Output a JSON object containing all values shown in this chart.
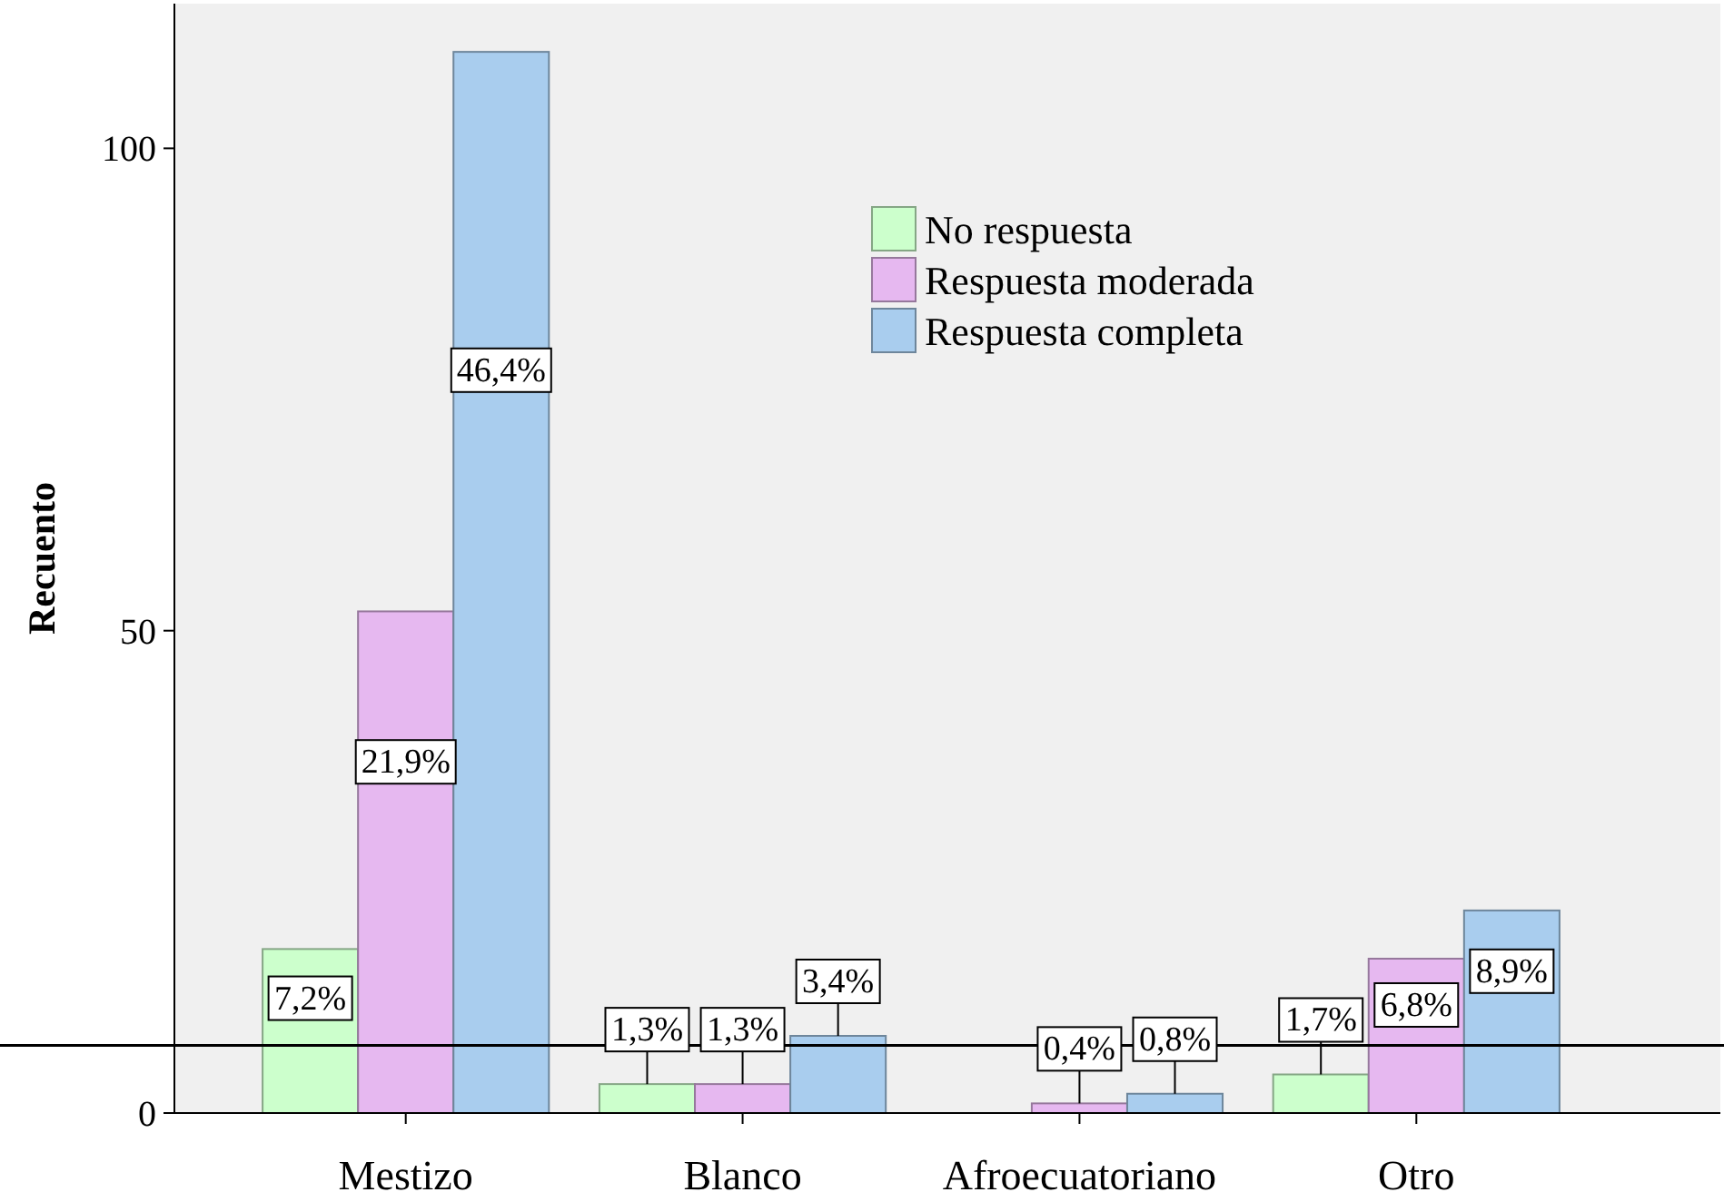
{
  "chart_data": {
    "type": "bar",
    "ylabel": "Recuento",
    "categories": [
      "Mestizo",
      "Blanco",
      "Afroecuatoriano",
      "Otro"
    ],
    "series": [
      {
        "name": "No respuesta",
        "color": "#ccffcc",
        "values": [
          17,
          3,
          0,
          4
        ]
      },
      {
        "name": "Respuesta moderada",
        "color": "#e6b8f0",
        "values": [
          52,
          3,
          1,
          16
        ]
      },
      {
        "name": "Respuesta completa",
        "color": "#a9cdee",
        "values": [
          110,
          8,
          2,
          21
        ]
      }
    ],
    "annotations": [
      "7,2%",
      "21,9%",
      "46,4%",
      "1,3%",
      "1,3%",
      "3,4%",
      "0,4%",
      "0,8%",
      "1,7%",
      "6,8%",
      "8,9%"
    ],
    "ylim": [
      0,
      115
    ],
    "yticks": [
      0,
      50,
      100
    ],
    "grid": false,
    "legend": "top right",
    "ref_lines": [
      {
        "axis": "y",
        "value": 7,
        "color": "#000000"
      }
    ]
  }
}
